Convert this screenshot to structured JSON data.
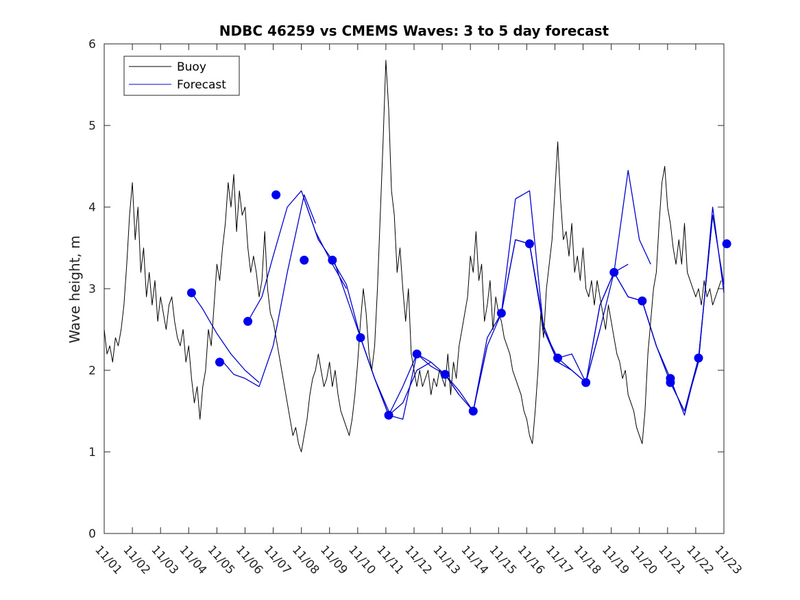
{
  "chart_data": {
    "type": "line",
    "title": "NDBC 46259 vs CMEMS Waves: 3 to 5 day forecast",
    "xlabel": "",
    "ylabel": "Wave height, m",
    "xlim": [
      0,
      22
    ],
    "ylim": [
      0,
      6
    ],
    "grid": false,
    "legend_position": "top-left",
    "x_tick_labels": [
      "11/01",
      "11/02",
      "11/03",
      "11/04",
      "11/05",
      "11/06",
      "11/07",
      "11/08",
      "11/09",
      "11/10",
      "11/11",
      "11/12",
      "11/13",
      "11/14",
      "11/15",
      "11/16",
      "11/17",
      "11/18",
      "11/19",
      "11/20",
      "11/21",
      "11/22",
      "11/23"
    ],
    "y_ticks": [
      0,
      1,
      2,
      3,
      4,
      5,
      6
    ],
    "legend": [
      {
        "name": "Buoy",
        "color": "#000000"
      },
      {
        "name": "Forecast",
        "color": "#0000cc"
      }
    ],
    "buoy": {
      "name": "Buoy",
      "color": "#000000",
      "x": [
        0,
        0.1,
        0.2,
        0.3,
        0.4,
        0.5,
        0.6,
        0.7,
        0.8,
        0.9,
        1.0,
        1.1,
        1.2,
        1.3,
        1.4,
        1.5,
        1.6,
        1.7,
        1.8,
        1.9,
        2.0,
        2.1,
        2.2,
        2.3,
        2.4,
        2.5,
        2.6,
        2.7,
        2.8,
        2.9,
        3.0,
        3.1,
        3.2,
        3.3,
        3.4,
        3.5,
        3.6,
        3.7,
        3.8,
        3.9,
        4.0,
        4.1,
        4.2,
        4.3,
        4.4,
        4.5,
        4.6,
        4.7,
        4.8,
        4.9,
        5.0,
        5.1,
        5.2,
        5.3,
        5.4,
        5.5,
        5.6,
        5.7,
        5.8,
        5.9,
        6.0,
        6.1,
        6.2,
        6.3,
        6.4,
        6.5,
        6.6,
        6.7,
        6.8,
        6.9,
        7.0,
        7.1,
        7.2,
        7.3,
        7.4,
        7.5,
        7.6,
        7.7,
        7.8,
        7.9,
        8.0,
        8.1,
        8.2,
        8.3,
        8.4,
        8.5,
        8.6,
        8.7,
        8.8,
        8.9,
        9.0,
        9.1,
        9.2,
        9.3,
        9.4,
        9.5,
        9.6,
        9.7,
        9.8,
        9.9,
        10.0,
        10.1,
        10.2,
        10.3,
        10.4,
        10.5,
        10.6,
        10.7,
        10.8,
        10.9,
        11.0,
        11.1,
        11.2,
        11.3,
        11.4,
        11.5,
        11.6,
        11.7,
        11.8,
        11.9,
        12.0,
        12.1,
        12.2,
        12.3,
        12.4,
        12.5,
        12.6,
        12.7,
        12.8,
        12.9,
        13.0,
        13.1,
        13.2,
        13.3,
        13.4,
        13.5,
        13.6,
        13.7,
        13.8,
        13.9,
        14.0,
        14.1,
        14.2,
        14.3,
        14.4,
        14.5,
        14.6,
        14.7,
        14.8,
        14.9,
        15.0,
        15.1,
        15.2,
        15.3,
        15.4,
        15.5,
        15.6,
        15.7,
        15.8,
        15.9,
        16.0,
        16.1,
        16.2,
        16.3,
        16.4,
        16.5,
        16.6,
        16.7,
        16.8,
        16.9,
        17.0,
        17.1,
        17.2,
        17.3,
        17.4,
        17.5,
        17.6,
        17.7,
        17.8,
        17.9,
        18.0,
        18.1,
        18.2,
        18.3,
        18.4,
        18.5,
        18.6,
        18.7,
        18.8,
        18.9,
        19.0,
        19.1,
        19.2,
        19.3,
        19.4,
        19.5,
        19.6,
        19.7,
        19.8,
        19.9,
        20.0,
        20.1,
        20.2,
        20.3,
        20.4,
        20.5,
        20.6,
        20.7,
        20.8,
        20.9,
        21.0,
        21.1,
        21.2,
        21.3,
        21.4,
        21.5,
        21.6,
        21.7,
        21.8,
        21.9
      ],
      "values": [
        2.5,
        2.2,
        2.3,
        2.1,
        2.4,
        2.3,
        2.5,
        2.8,
        3.3,
        3.9,
        4.3,
        3.6,
        4.0,
        3.2,
        3.5,
        2.9,
        3.2,
        2.8,
        3.1,
        2.6,
        2.9,
        2.7,
        2.5,
        2.8,
        2.9,
        2.6,
        2.4,
        2.3,
        2.5,
        2.1,
        2.3,
        1.9,
        1.6,
        1.8,
        1.4,
        1.8,
        2.0,
        2.5,
        2.3,
        2.8,
        3.3,
        3.1,
        3.5,
        3.8,
        4.3,
        4.0,
        4.4,
        3.7,
        4.2,
        3.9,
        4.0,
        3.5,
        3.2,
        3.4,
        3.2,
        2.9,
        3.1,
        3.7,
        3.0,
        2.7,
        2.6,
        2.4,
        2.2,
        2.0,
        1.8,
        1.6,
        1.4,
        1.2,
        1.3,
        1.1,
        1.0,
        1.2,
        1.4,
        1.7,
        1.9,
        2.0,
        2.2,
        2.0,
        1.8,
        1.9,
        2.1,
        1.8,
        2.0,
        1.7,
        1.5,
        1.4,
        1.3,
        1.2,
        1.4,
        1.7,
        2.1,
        2.6,
        3.0,
        2.7,
        2.2,
        2.0,
        2.3,
        3.0,
        3.9,
        4.8,
        5.8,
        5.2,
        4.2,
        3.9,
        3.2,
        3.5,
        3.0,
        2.6,
        3.0,
        2.2,
        2.0,
        1.8,
        2.0,
        1.8,
        1.9,
        2.0,
        1.7,
        1.9,
        1.8,
        2.0,
        1.9,
        1.8,
        2.2,
        1.7,
        2.1,
        1.9,
        2.3,
        2.5,
        2.7,
        2.9,
        3.4,
        3.2,
        3.7,
        3.1,
        3.3,
        2.6,
        2.8,
        3.1,
        2.5,
        2.9,
        2.7,
        2.6,
        2.4,
        2.3,
        2.2,
        2.0,
        1.9,
        1.8,
        1.7,
        1.5,
        1.4,
        1.2,
        1.1,
        1.5,
        2.0,
        2.7,
        2.4,
        3.0,
        3.3,
        3.6,
        4.2,
        4.8,
        4.1,
        3.6,
        3.7,
        3.4,
        3.8,
        3.2,
        3.4,
        3.1,
        3.5,
        3.0,
        2.9,
        3.1,
        2.8,
        3.1,
        2.9,
        2.7,
        2.5,
        2.8,
        2.6,
        2.4,
        2.2,
        2.1,
        1.9,
        2.0,
        1.7,
        1.6,
        1.5,
        1.3,
        1.2,
        1.1,
        1.5,
        2.2,
        2.6,
        3.0,
        3.2,
        3.8,
        4.3,
        4.5,
        4.0,
        3.8,
        3.5,
        3.3,
        3.6,
        3.3,
        3.8,
        3.2,
        3.1,
        3.0,
        2.9,
        3.0,
        2.8,
        3.1,
        2.9,
        3.0,
        2.8,
        2.9,
        3.0,
        3.1
      ]
    },
    "forecast_series": [
      {
        "name": "Forecast run 1",
        "color": "#0000cc",
        "x": [
          3.1,
          3.5,
          4.0,
          4.5,
          5.0,
          5.5
        ],
        "values": [
          2.95,
          2.75,
          2.45,
          2.2,
          2.0,
          1.85
        ]
      },
      {
        "name": "Forecast run 2",
        "color": "#0000cc",
        "x": [
          4.1,
          4.6,
          5.0,
          5.5,
          6.0,
          6.5,
          7.1,
          7.5
        ],
        "values": [
          2.15,
          1.95,
          1.9,
          1.8,
          2.3,
          3.2,
          4.15,
          3.8
        ]
      },
      {
        "name": "Forecast run 3",
        "color": "#0000cc",
        "x": [
          5.1,
          5.6,
          6.0,
          6.5,
          7.0,
          7.5,
          8.1,
          8.6
        ],
        "values": [
          2.6,
          2.9,
          3.4,
          4.0,
          4.2,
          3.7,
          3.3,
          3.0
        ]
      },
      {
        "name": "Forecast run 4",
        "color": "#0000cc",
        "x": [
          7.1,
          7.6,
          8.1,
          8.6,
          9.1,
          9.6,
          10.1
        ],
        "values": [
          4.1,
          3.6,
          3.35,
          3.05,
          2.4,
          1.9,
          1.5
        ]
      },
      {
        "name": "Forecast run 5",
        "color": "#0000cc",
        "x": [
          8.1,
          8.6,
          9.1,
          9.6,
          10.1,
          10.6,
          11.1,
          11.6
        ],
        "values": [
          3.4,
          2.9,
          2.4,
          1.9,
          1.45,
          1.6,
          2.0,
          2.1
        ]
      },
      {
        "name": "Forecast run 6",
        "color": "#0000cc",
        "x": [
          9.1,
          9.6,
          10.1,
          10.6,
          11.1,
          11.6,
          12.1,
          12.6
        ],
        "values": [
          2.4,
          1.9,
          1.45,
          1.4,
          2.2,
          2.05,
          1.95,
          1.7
        ]
      },
      {
        "name": "Forecast run 7",
        "color": "#0000cc",
        "x": [
          10.1,
          10.6,
          11.1,
          11.6,
          12.1,
          12.6,
          13.1,
          13.6
        ],
        "values": [
          1.45,
          1.8,
          2.2,
          2.1,
          1.95,
          1.75,
          1.5,
          2.3
        ]
      },
      {
        "name": "Forecast run 8",
        "color": "#0000cc",
        "x": [
          12.1,
          12.6,
          13.1,
          13.6,
          14.1,
          14.6,
          15.1,
          15.6
        ],
        "values": [
          1.95,
          1.7,
          1.5,
          2.4,
          2.7,
          3.6,
          3.55,
          2.55
        ]
      },
      {
        "name": "Forecast run 9",
        "color": "#0000cc",
        "x": [
          13.1,
          13.6,
          14.1,
          14.6,
          15.1,
          15.6,
          16.1,
          16.6
        ],
        "values": [
          1.5,
          2.3,
          2.7,
          4.1,
          4.2,
          2.5,
          2.1,
          2.0
        ]
      },
      {
        "name": "Forecast run 10",
        "color": "#0000cc",
        "x": [
          14.1,
          14.6,
          15.1,
          15.6,
          16.1,
          16.6,
          17.1,
          17.6
        ],
        "values": [
          2.7,
          3.6,
          3.55,
          2.55,
          2.1,
          2.0,
          1.85,
          2.5
        ]
      },
      {
        "name": "Forecast run 11",
        "color": "#0000cc",
        "x": [
          15.1,
          15.6,
          16.1,
          16.6,
          17.1,
          17.6,
          18.1,
          18.6
        ],
        "values": [
          3.55,
          2.5,
          2.15,
          2.2,
          1.85,
          2.5,
          3.2,
          3.3
        ]
      },
      {
        "name": "Forecast run 12",
        "color": "#0000cc",
        "x": [
          16.1,
          16.6,
          17.1,
          17.6,
          18.1,
          18.6,
          19.1,
          19.6
        ],
        "values": [
          2.15,
          2.0,
          1.85,
          2.8,
          3.2,
          2.9,
          2.85,
          2.3
        ]
      },
      {
        "name": "Forecast run 13",
        "color": "#0000cc",
        "x": [
          17.1,
          17.6,
          18.1,
          18.6,
          19.0,
          19.4
        ],
        "values": [
          1.85,
          2.8,
          3.2,
          4.45,
          3.6,
          3.3
        ]
      },
      {
        "name": "Forecast run 14",
        "color": "#0000cc",
        "x": [
          18.1,
          18.6,
          19.1,
          19.6,
          20.1,
          20.6,
          21.1,
          21.6
        ],
        "values": [
          3.2,
          2.9,
          2.85,
          2.3,
          1.9,
          1.45,
          2.15,
          3.9
        ]
      },
      {
        "name": "Forecast run 15",
        "color": "#0000cc",
        "x": [
          19.1,
          19.6,
          20.1,
          20.6,
          21.1,
          21.6,
          22.0
        ],
        "values": [
          2.85,
          2.3,
          1.85,
          1.5,
          2.15,
          3.9,
          3.05
        ]
      },
      {
        "name": "Forecast run 16",
        "color": "#0000cc",
        "x": [
          20.1,
          20.6,
          21.1,
          21.6,
          22.0
        ],
        "values": [
          1.85,
          1.5,
          2.1,
          4.0,
          2.95
        ]
      }
    ],
    "forecast_points": {
      "name": "Forecast",
      "color": "#0000ee",
      "x": [
        3.1,
        4.1,
        5.1,
        6.1,
        7.1,
        8.1,
        9.1,
        10.1,
        11.1,
        12.1,
        13.1,
        14.1,
        15.1,
        16.1,
        17.1,
        18.1,
        19.1,
        20.1,
        20.1,
        21.1,
        22.1
      ],
      "values": [
        2.95,
        2.1,
        2.6,
        4.15,
        3.35,
        3.35,
        2.4,
        1.45,
        2.2,
        1.95,
        1.5,
        2.7,
        3.55,
        2.15,
        1.85,
        3.2,
        2.85,
        1.9,
        1.85,
        2.15,
        3.55
      ]
    }
  }
}
